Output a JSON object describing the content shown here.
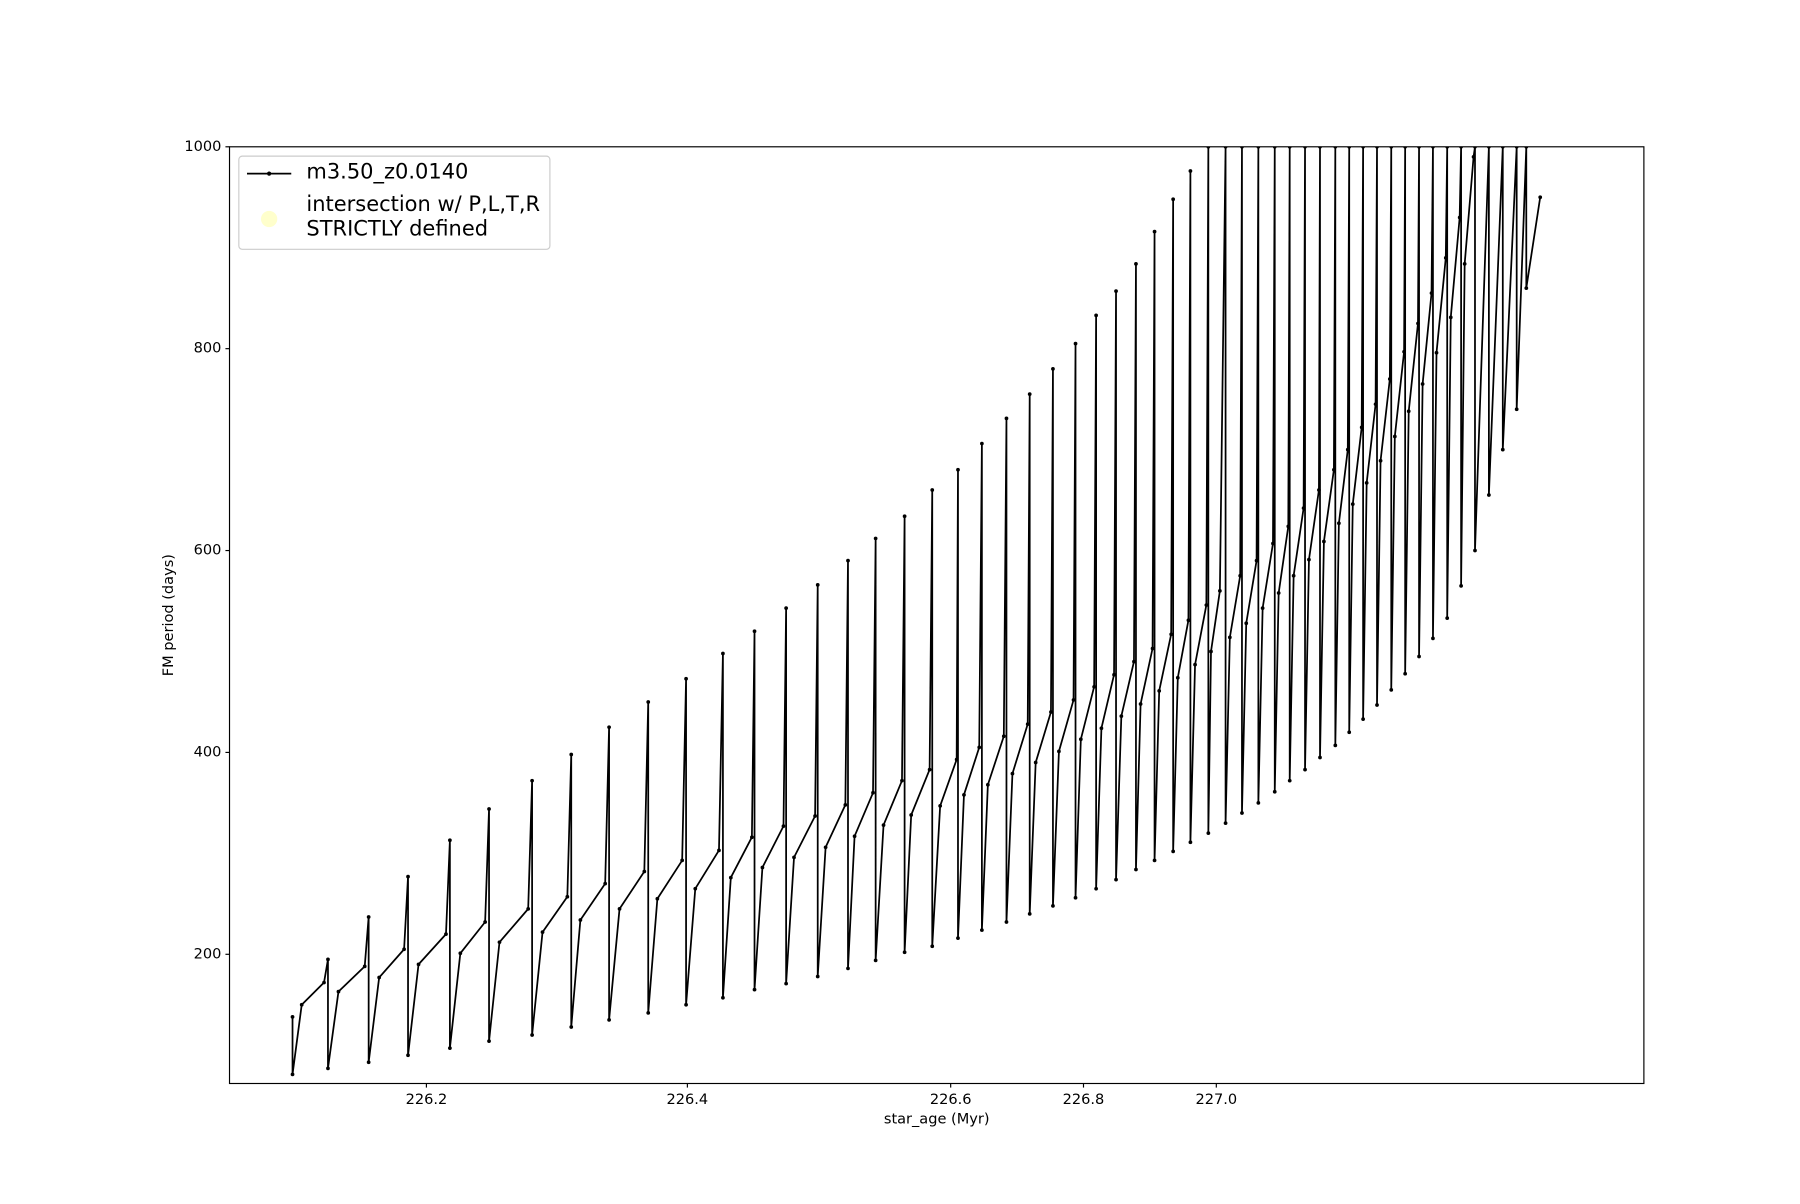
{
  "chart_data": {
    "type": "line",
    "x_label": "star_age (Myr)",
    "y_label": "FM period (days)",
    "xlim": [
      226.05,
      227.12
    ],
    "xticks": [
      226.2,
      226.4,
      226.6,
      226.8,
      {
        "value": 227,
        "label": "227.0"
      }
    ],
    "ylim": [
      72,
      1000
    ],
    "yticks": [
      200,
      400,
      600,
      800,
      1000
    ],
    "legend": "upper left",
    "series": [
      {
        "name": "m3.50_z0.0140",
        "color": "#000000",
        "marker": true,
        "x": [
          226.098,
          226.098,
          226.105,
          226.122,
          226.125,
          226.125,
          226.133,
          226.153,
          226.156,
          226.156,
          226.164,
          226.183,
          226.186,
          226.186,
          226.194,
          226.215,
          226.218,
          226.218,
          226.226,
          226.245,
          226.248,
          226.248,
          226.256,
          226.278,
          226.281,
          226.281,
          226.289,
          226.308,
          226.311,
          226.311,
          226.318,
          226.337,
          226.34,
          226.34,
          226.348,
          226.367,
          226.37,
          226.37,
          226.377,
          226.396,
          226.399,
          226.399,
          226.406,
          226.424,
          226.427,
          226.427,
          226.433,
          226.449,
          226.451,
          226.451,
          226.457,
          226.473,
          226.475,
          226.475,
          226.481,
          226.497,
          226.499,
          226.499,
          226.505,
          226.52,
          226.522,
          226.522,
          226.527,
          226.541,
          226.543,
          226.543,
          226.549,
          226.563,
          226.565,
          226.565,
          226.57,
          226.584,
          226.586,
          226.586,
          226.592,
          226.609,
          226.611,
          226.611,
          226.62,
          226.643,
          226.647,
          226.647,
          226.656,
          226.68,
          226.684,
          226.684,
          226.693,
          226.716,
          226.719,
          226.719,
          226.728,
          226.751,
          226.754,
          226.754,
          226.763,
          226.785,
          226.788,
          226.788,
          226.796,
          226.816,
          226.819,
          226.819,
          226.827,
          226.846,
          226.849,
          226.849,
          226.857,
          226.876,
          226.879,
          226.879,
          226.886,
          226.904,
          226.907,
          226.907,
          226.914,
          226.932,
          226.935,
          226.935,
          226.942,
          226.958,
          226.961,
          226.961,
          226.968,
          226.985,
          226.988,
          226.988,
          226.992,
          227.001,
          227.0026,
          227.0026,
          227.0038,
          227.0067,
          227.0072,
          227.0072,
          227.0084,
          227.0113,
          227.0118,
          227.0118,
          227.013,
          227.0159,
          227.0164,
          227.0164,
          227.0175,
          227.0202,
          227.0206,
          227.0206,
          227.0217,
          227.0245,
          227.0249,
          227.0249,
          227.026,
          227.0288,
          227.0291,
          227.0291,
          227.0302,
          227.033,
          227.0334,
          227.0334,
          227.0344,
          227.0369,
          227.0373,
          227.0373,
          227.0383,
          227.0408,
          227.0412,
          227.0412,
          227.0422,
          227.0447,
          227.0451,
          227.0451,
          227.0461,
          227.0487,
          227.0491,
          227.0491,
          227.0501,
          227.0527,
          227.053,
          227.053,
          227.054,
          227.0566,
          227.0569,
          227.0569,
          227.0579,
          227.0604,
          227.0608,
          227.0608,
          227.0618,
          227.0644,
          227.0648,
          227.0648,
          227.0658,
          227.0683,
          227.0687,
          227.0687,
          227.0697,
          227.0722,
          227.0726,
          227.0726,
          227.0765,
          227.0765,
          227.0804,
          227.0804,
          227.0843,
          227.0843,
          227.087,
          227.087,
          227.0909
        ],
        "values": [
          138,
          81,
          150,
          172,
          195,
          87,
          163,
          188,
          237,
          93,
          177,
          205,
          277,
          100,
          190,
          220,
          313,
          107,
          201,
          232,
          344,
          114,
          212,
          245,
          372,
          120,
          222,
          257,
          398,
          128,
          234,
          270,
          425,
          135,
          245,
          282,
          450,
          142,
          255,
          293,
          473,
          150,
          265,
          303,
          498,
          157,
          276,
          316,
          520,
          165,
          286,
          327,
          543,
          171,
          296,
          337,
          566,
          178,
          306,
          348,
          590,
          186,
          317,
          360,
          612,
          194,
          328,
          372,
          634,
          202,
          338,
          383,
          660,
          208,
          347,
          393,
          680,
          216,
          358,
          405,
          706,
          224,
          368,
          416,
          731,
          232,
          379,
          428,
          755,
          240,
          390,
          440,
          780,
          248,
          401,
          452,
          805,
          256,
          413,
          465,
          833,
          265,
          424,
          477,
          857,
          274,
          436,
          490,
          884,
          284,
          448,
          503,
          916,
          293,
          461,
          517,
          948,
          302,
          474,
          531,
          976,
          311,
          487,
          546,
          1000,
          320,
          500,
          560,
          1000,
          330,
          514,
          575,
          1000,
          340,
          528,
          590,
          1000,
          350,
          543,
          607,
          1000,
          361,
          558,
          624,
          1000,
          372,
          575,
          642,
          1000,
          383,
          591,
          660,
          1000,
          395,
          609,
          680,
          1000,
          407,
          627,
          700,
          1000,
          420,
          646,
          722,
          1000,
          433,
          667,
          745,
          1000,
          447,
          689,
          770,
          1000,
          462,
          713,
          797,
          1000,
          478,
          738,
          825,
          1000,
          495,
          765,
          855,
          1000,
          513,
          796,
          890,
          1000,
          533,
          831,
          930,
          1000,
          565,
          884,
          990,
          1000,
          600,
          1000,
          655,
          1000,
          700,
          1000,
          740,
          1000,
          860,
          950
        ]
      },
      {
        "name": "intersection w/ P,L,T,R\nSTRICTLY defined",
        "color": "#ffffaa",
        "x": [],
        "values": []
      }
    ]
  }
}
